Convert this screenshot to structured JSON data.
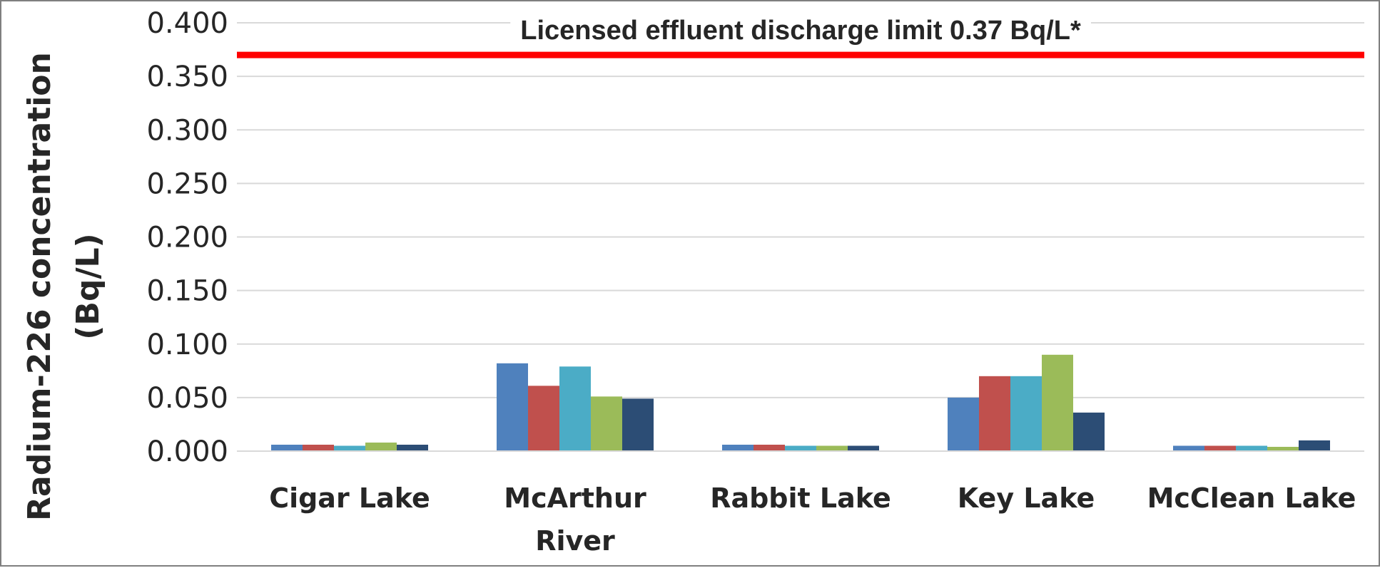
{
  "chart_data": {
    "type": "bar",
    "categories": [
      [
        "Cigar Lake"
      ],
      [
        "McArthur",
        "River"
      ],
      [
        "Rabbit Lake"
      ],
      [
        "Key Lake"
      ],
      [
        "McClean Lake"
      ]
    ],
    "series": [
      {
        "values": [
          0.006,
          0.082,
          0.006,
          0.05,
          0.005
        ],
        "color": "#4f81bd"
      },
      {
        "values": [
          0.006,
          0.061,
          0.006,
          0.07,
          0.005
        ],
        "color": "#c0504d"
      },
      {
        "values": [
          0.005,
          0.079,
          0.005,
          0.07,
          0.005
        ],
        "color": "#4bacc6"
      },
      {
        "values": [
          0.008,
          0.051,
          0.005,
          0.09,
          0.004
        ],
        "color": "#9bbb59"
      },
      {
        "values": [
          0.006,
          0.049,
          0.005,
          0.036,
          0.01
        ],
        "color": "#2c4d75"
      }
    ],
    "ylabel": [
      "Radium-226 concentration",
      "(Bq/L)"
    ],
    "ylim": [
      0,
      0.4
    ],
    "yticks": [
      "0.000",
      "0.050",
      "0.100",
      "0.150",
      "0.200",
      "0.250",
      "0.300",
      "0.350",
      "0.400"
    ],
    "grid": true,
    "reference_line": {
      "value": 0.37,
      "label": "Licensed effluent discharge limit 0.37 Bq/L*",
      "color": "#ff0000"
    }
  }
}
